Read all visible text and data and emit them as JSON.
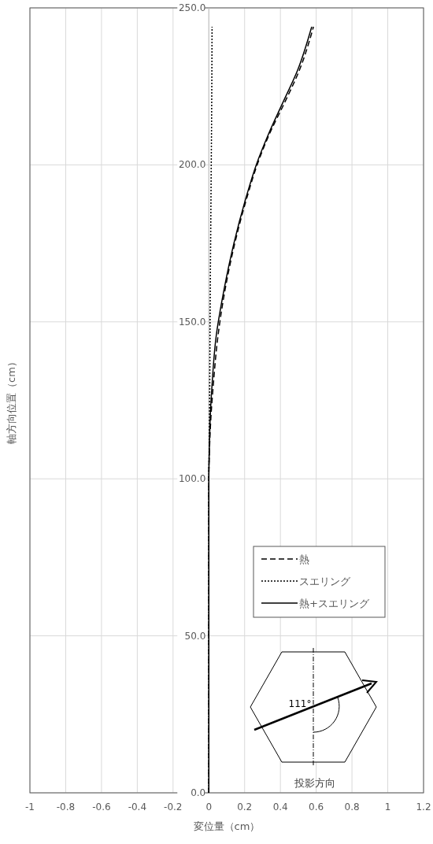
{
  "chart_data": {
    "type": "line",
    "xlabel": "変位量（cm）",
    "ylabel": "軸方向位置（cm）",
    "xlim": [
      -1,
      1.2
    ],
    "xticks": [
      -1,
      -0.8,
      -0.6,
      -0.4,
      -0.2,
      0,
      0.2,
      0.4,
      0.6,
      0.8,
      1,
      1.2
    ],
    "ylim": [
      0,
      250
    ],
    "yticks": [
      {
        "value": 0,
        "label": "0.0"
      },
      {
        "value": 50,
        "label": "50.0"
      },
      {
        "value": 100,
        "label": "100.0"
      },
      {
        "value": 150,
        "label": "150.0"
      },
      {
        "value": 200,
        "label": "200.0"
      },
      {
        "value": 250,
        "label": "250.0"
      }
    ],
    "grid": true,
    "legend": "bottom right",
    "series": [
      {
        "name": "熱",
        "color": "#000000",
        "line_style": "dashed",
        "x": [
          0,
          0,
          0.004,
          0.012,
          0.025,
          0.05,
          0.09,
          0.145,
          0.215,
          0.27,
          0.34,
          0.425,
          0.505,
          0.585
        ],
        "values": [
          0,
          100,
          110,
          120,
          130,
          145,
          160,
          175,
          190,
          200,
          210,
          220,
          230,
          244
        ]
      },
      {
        "name": "スエリング",
        "color": "#000000",
        "line_style": "dotted",
        "x": [
          0,
          0,
          0.002,
          0.005,
          0.008,
          0.012,
          0.016,
          0.018
        ],
        "values": [
          0,
          100,
          110,
          130,
          160,
          190,
          220,
          244
        ]
      },
      {
        "name": "熱+スエリング",
        "color": "#000000",
        "line_style": "solid",
        "x": [
          0,
          0,
          0.003,
          0.008,
          0.018,
          0.04,
          0.084,
          0.14,
          0.21,
          0.265,
          0.335,
          0.415,
          0.495,
          0.575
        ],
        "values": [
          0,
          100,
          110,
          120,
          130,
          145,
          160,
          175,
          190,
          200,
          210,
          220,
          230,
          244
        ]
      }
    ],
    "annotations": [
      "111°",
      "投影方向"
    ]
  }
}
